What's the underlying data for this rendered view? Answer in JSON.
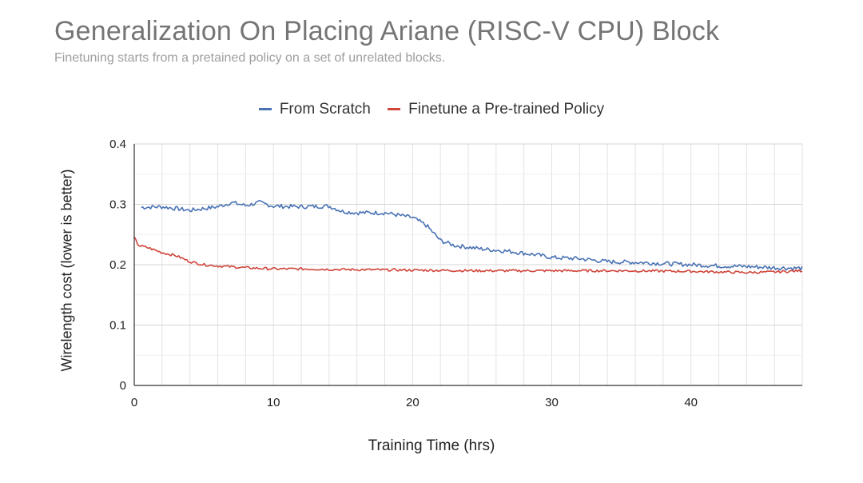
{
  "chart_data": {
    "type": "line",
    "title": "Generalization On Placing Ariane (RISC-V CPU) Block",
    "subtitle": "Finetuning starts from a pretained policy on a set of unrelated blocks.",
    "xlabel": "Training Time (hrs)",
    "ylabel": "Wirelength cost (lower is better)",
    "xlim": [
      0,
      48
    ],
    "ylim": [
      0,
      0.4
    ],
    "xticks": [
      0,
      10,
      20,
      30,
      40
    ],
    "yticks": [
      0,
      0.1,
      0.2,
      0.3,
      0.4
    ],
    "grid": true,
    "legend_position": "top",
    "series": [
      {
        "name": "From Scratch",
        "color": "#4a73b5",
        "x": [
          0.5,
          2,
          4,
          6,
          7,
          8,
          9,
          10,
          12,
          14,
          15,
          16,
          18,
          19,
          20,
          21,
          22,
          23,
          25,
          27,
          29,
          30,
          32,
          34,
          36,
          38,
          40,
          42,
          44,
          46,
          48
        ],
        "y": [
          0.295,
          0.296,
          0.29,
          0.296,
          0.303,
          0.298,
          0.303,
          0.297,
          0.296,
          0.297,
          0.288,
          0.286,
          0.286,
          0.282,
          0.278,
          0.265,
          0.24,
          0.232,
          0.226,
          0.222,
          0.216,
          0.212,
          0.21,
          0.205,
          0.204,
          0.202,
          0.2,
          0.198,
          0.197,
          0.195,
          0.194
        ]
      },
      {
        "name": "Finetune a Pre-trained Policy",
        "color": "#d0453a",
        "x": [
          0,
          0.3,
          1,
          2,
          3,
          4,
          5,
          6,
          8,
          10,
          12,
          15,
          20,
          25,
          30,
          35,
          40,
          44,
          46,
          48
        ],
        "y": [
          0.245,
          0.232,
          0.228,
          0.22,
          0.215,
          0.205,
          0.2,
          0.198,
          0.195,
          0.193,
          0.193,
          0.192,
          0.191,
          0.19,
          0.19,
          0.19,
          0.189,
          0.187,
          0.188,
          0.19
        ]
      }
    ]
  }
}
